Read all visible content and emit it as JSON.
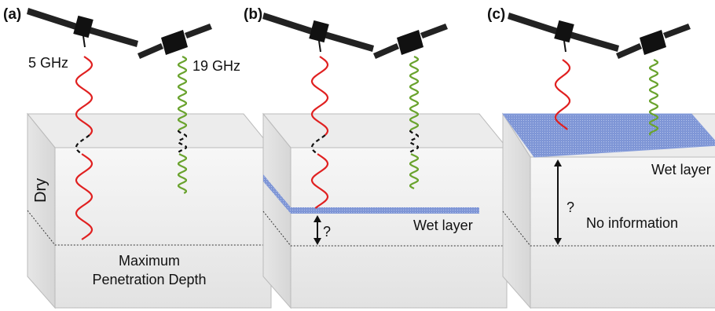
{
  "panels": [
    {
      "label": "(a)",
      "freq_low": "5 GHz",
      "freq_high": "19 GHz",
      "layer": "Dry",
      "depth_lines": [
        "Maximum",
        "Penetration Depth"
      ]
    },
    {
      "label": "(b)",
      "question": "?",
      "layer": "Wet layer"
    },
    {
      "label": "(c)",
      "question": "?",
      "layer": "Wet layer",
      "note": "No information"
    }
  ]
}
